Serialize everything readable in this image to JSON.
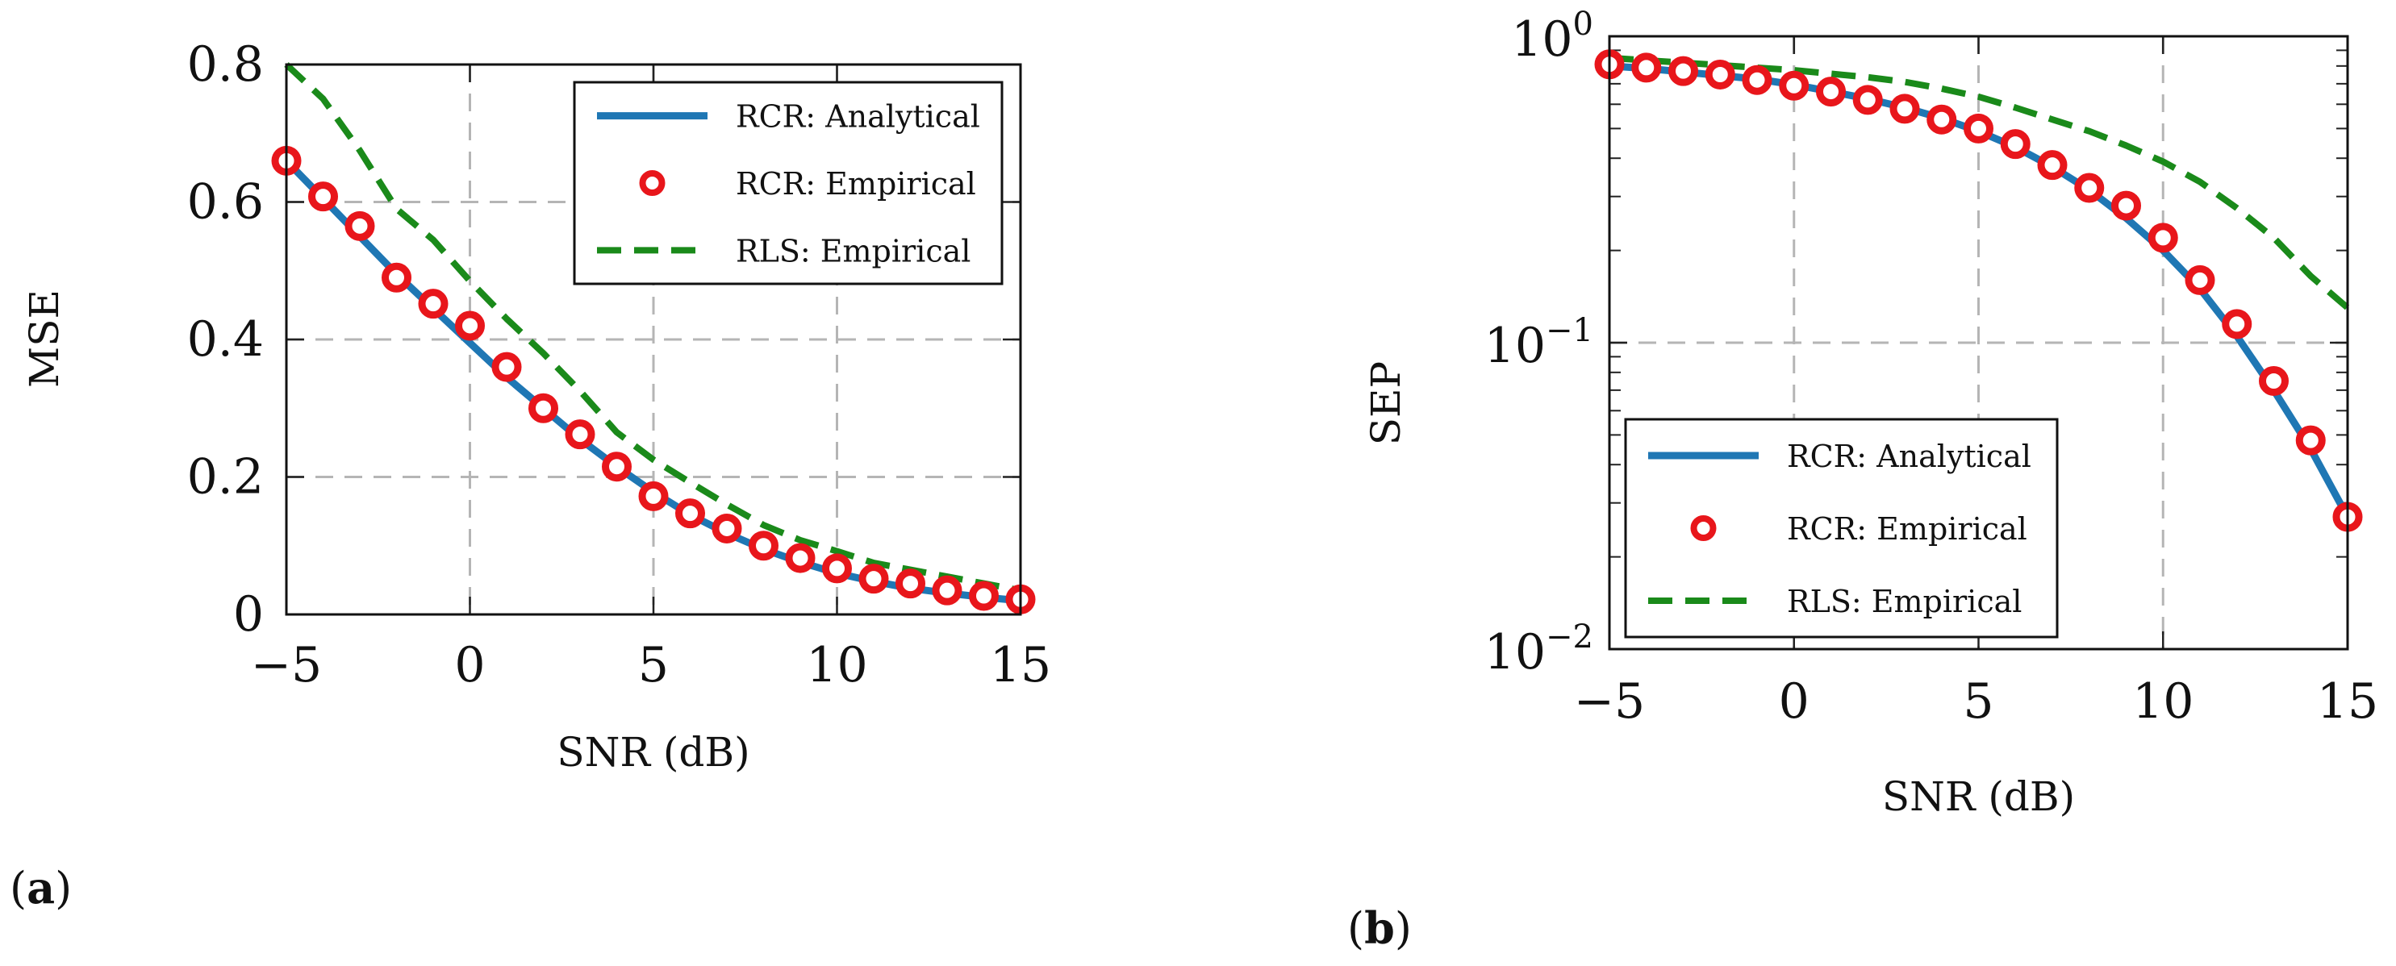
{
  "chart_data": [
    {
      "type": "line",
      "panel_label_open": "(",
      "panel_label_letter": "a",
      "panel_label_close": ")",
      "xlabel": "SNR (dB)",
      "ylabel": "MSE",
      "yscale": "linear",
      "xlim": [
        -5,
        15
      ],
      "ylim": [
        0,
        0.8
      ],
      "grid": true,
      "legend_position": "top-right",
      "xticks": [
        -5,
        0,
        5,
        10,
        15
      ],
      "xtick_labels": [
        "−5",
        "0",
        "5",
        "10",
        "15"
      ],
      "yticks": [
        0,
        0.2,
        0.4,
        0.6,
        0.8
      ],
      "ytick_labels": [
        "0",
        "0.2",
        "0.4",
        "0.6",
        "0.8"
      ],
      "x": [
        -5,
        -4,
        -3,
        -2,
        -1,
        0,
        1,
        2,
        3,
        4,
        5,
        6,
        7,
        8,
        9,
        10,
        11,
        12,
        13,
        14,
        15
      ],
      "series": [
        {
          "name": "RCR: Analytical",
          "style": "solid",
          "color": "#1f77b4",
          "values": [
            0.66,
            0.605,
            0.55,
            0.495,
            0.445,
            0.395,
            0.345,
            0.3,
            0.255,
            0.215,
            0.178,
            0.145,
            0.118,
            0.095,
            0.076,
            0.06,
            0.048,
            0.038,
            0.031,
            0.025,
            0.02
          ]
        },
        {
          "name": "RCR: Empirical",
          "style": "markers",
          "color": "#e8161b",
          "values": [
            0.66,
            0.608,
            0.565,
            0.49,
            0.452,
            0.42,
            0.36,
            0.3,
            0.262,
            0.215,
            0.172,
            0.147,
            0.125,
            0.1,
            0.082,
            0.067,
            0.052,
            0.045,
            0.035,
            0.027,
            0.022
          ]
        },
        {
          "name": "RLS: Empirical",
          "style": "dashed",
          "color": "#1a8a1a",
          "values": [
            0.8,
            0.75,
            0.675,
            0.59,
            0.545,
            0.485,
            0.43,
            0.38,
            0.325,
            0.265,
            0.225,
            0.192,
            0.16,
            0.13,
            0.108,
            0.092,
            0.075,
            0.065,
            0.055,
            0.045,
            0.035
          ]
        }
      ]
    },
    {
      "type": "line",
      "panel_label_open": "(",
      "panel_label_letter": "b",
      "panel_label_close": ")",
      "xlabel": "SNR (dB)",
      "ylabel": "SEP",
      "yscale": "log",
      "xlim": [
        -5,
        15
      ],
      "ylim": [
        0.01,
        1
      ],
      "grid": true,
      "legend_position": "bottom-left",
      "xticks": [
        -5,
        0,
        5,
        10,
        15
      ],
      "xtick_labels": [
        "−5",
        "0",
        "5",
        "10",
        "15"
      ],
      "yticks": [
        0.01,
        0.1,
        1
      ],
      "ytick_bases": [
        "10",
        "10",
        "10"
      ],
      "ytick_exponents": [
        "−2",
        "−1",
        "0"
      ],
      "x": [
        -5,
        -4,
        -3,
        -2,
        -1,
        0,
        1,
        2,
        3,
        4,
        5,
        6,
        7,
        8,
        9,
        10,
        11,
        12,
        13,
        14,
        15
      ],
      "series": [
        {
          "name": "RCR: Analytical",
          "style": "solid",
          "color": "#1f77b4",
          "values": [
            0.8,
            0.785,
            0.765,
            0.745,
            0.725,
            0.695,
            0.66,
            0.625,
            0.585,
            0.54,
            0.49,
            0.435,
            0.375,
            0.315,
            0.255,
            0.2,
            0.15,
            0.105,
            0.07,
            0.045,
            0.027
          ]
        },
        {
          "name": "RCR: Empirical",
          "style": "markers",
          "color": "#e8161b",
          "values": [
            0.81,
            0.79,
            0.77,
            0.75,
            0.72,
            0.69,
            0.66,
            0.62,
            0.58,
            0.535,
            0.5,
            0.445,
            0.38,
            0.32,
            0.28,
            0.22,
            0.16,
            0.115,
            0.075,
            0.048,
            0.027
          ]
        },
        {
          "name": "RLS: Empirical",
          "style": "dashed",
          "color": "#1a8a1a",
          "values": [
            0.85,
            0.835,
            0.82,
            0.805,
            0.79,
            0.775,
            0.755,
            0.735,
            0.71,
            0.675,
            0.635,
            0.585,
            0.535,
            0.49,
            0.44,
            0.39,
            0.335,
            0.275,
            0.22,
            0.165,
            0.13
          ]
        }
      ]
    }
  ]
}
